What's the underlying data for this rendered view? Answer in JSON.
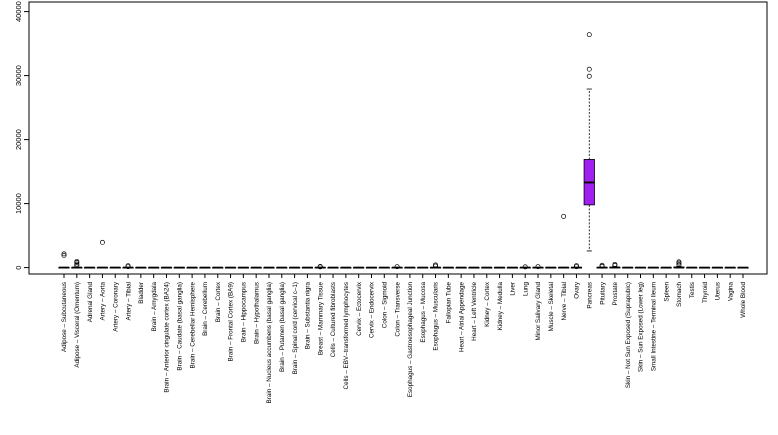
{
  "chart_data": {
    "type": "boxplot",
    "title": "",
    "xlabel": "",
    "ylabel": "",
    "ylim": [
      -1000,
      41500
    ],
    "yticks": [
      0,
      10000,
      20000,
      30000,
      40000
    ],
    "ytick_labels": [
      "0",
      "10000",
      "20000",
      "30000",
      "40000"
    ],
    "grid": false,
    "highlight_color": "#a020f0",
    "default_box_color": "#ffffff",
    "categories": [
      {
        "name": "Adipose – Subcutaneous",
        "q1": 0,
        "median": 5,
        "q3": 20,
        "wlo": 0,
        "whi": 45,
        "outliers": [
          1900,
          2150
        ]
      },
      {
        "name": "Adipose – Visceral (Omentum)",
        "q1": 0,
        "median": 5,
        "q3": 25,
        "wlo": 0,
        "whi": 55,
        "outliers": [
          350,
          550,
          800,
          950
        ]
      },
      {
        "name": "Adrenal Gland",
        "q1": 0,
        "median": 3,
        "q3": 10,
        "wlo": 0,
        "whi": 20,
        "outliers": []
      },
      {
        "name": "Artery – Aorta",
        "q1": 0,
        "median": 5,
        "q3": 20,
        "wlo": 0,
        "whi": 45,
        "outliers": [
          3950
        ]
      },
      {
        "name": "Artery – Coronary",
        "q1": 0,
        "median": 5,
        "q3": 20,
        "wlo": 0,
        "whi": 45,
        "outliers": []
      },
      {
        "name": "Artery – Tibial",
        "q1": 0,
        "median": 5,
        "q3": 20,
        "wlo": 0,
        "whi": 45,
        "outliers": [
          150,
          300
        ]
      },
      {
        "name": "Bladder",
        "q1": 0,
        "median": 3,
        "q3": 10,
        "wlo": 0,
        "whi": 20,
        "outliers": []
      },
      {
        "name": "Brain – Amygdala",
        "q1": 0,
        "median": 3,
        "q3": 10,
        "wlo": 0,
        "whi": 20,
        "outliers": []
      },
      {
        "name": "Brain – Anterior cingulate cortex (BA24)",
        "q1": 0,
        "median": 3,
        "q3": 10,
        "wlo": 0,
        "whi": 20,
        "outliers": []
      },
      {
        "name": "Brain – Caudate (basal ganglia)",
        "q1": 0,
        "median": 3,
        "q3": 10,
        "wlo": 0,
        "whi": 20,
        "outliers": []
      },
      {
        "name": "Brain – Cerebellar Hemisphere",
        "q1": 0,
        "median": 3,
        "q3": 10,
        "wlo": 0,
        "whi": 20,
        "outliers": []
      },
      {
        "name": "Brain – Cerebellum",
        "q1": 0,
        "median": 3,
        "q3": 10,
        "wlo": 0,
        "whi": 20,
        "outliers": []
      },
      {
        "name": "Brain – Cortex",
        "q1": 0,
        "median": 3,
        "q3": 10,
        "wlo": 0,
        "whi": 20,
        "outliers": []
      },
      {
        "name": "Brain – Frontal Cortex (BA9)",
        "q1": 0,
        "median": 3,
        "q3": 10,
        "wlo": 0,
        "whi": 20,
        "outliers": []
      },
      {
        "name": "Brain – Hippocampus",
        "q1": 0,
        "median": 3,
        "q3": 10,
        "wlo": 0,
        "whi": 20,
        "outliers": []
      },
      {
        "name": "Brain – Hypothalamus",
        "q1": 0,
        "median": 3,
        "q3": 10,
        "wlo": 0,
        "whi": 20,
        "outliers": []
      },
      {
        "name": "Brain – Nucleus accumbens (basal ganglia)",
        "q1": 0,
        "median": 3,
        "q3": 10,
        "wlo": 0,
        "whi": 20,
        "outliers": []
      },
      {
        "name": "Brain – Putamen (basal ganglia)",
        "q1": 0,
        "median": 3,
        "q3": 10,
        "wlo": 0,
        "whi": 20,
        "outliers": []
      },
      {
        "name": "Brain – Spinal cord (cervical c–1)",
        "q1": 0,
        "median": 3,
        "q3": 10,
        "wlo": 0,
        "whi": 20,
        "outliers": []
      },
      {
        "name": "Brain – Substantia nigra",
        "q1": 0,
        "median": 3,
        "q3": 10,
        "wlo": 0,
        "whi": 20,
        "outliers": []
      },
      {
        "name": "Breast – Mammary Tissue",
        "q1": 0,
        "median": 5,
        "q3": 25,
        "wlo": 0,
        "whi": 55,
        "outliers": [
          120,
          180
        ]
      },
      {
        "name": "Cells – Cultured fibroblasts",
        "q1": 0,
        "median": 3,
        "q3": 10,
        "wlo": 0,
        "whi": 20,
        "outliers": []
      },
      {
        "name": "Cells – EBV–transformed lymphocytes",
        "q1": 0,
        "median": 3,
        "q3": 10,
        "wlo": 0,
        "whi": 20,
        "outliers": []
      },
      {
        "name": "Cervix – Ectocervix",
        "q1": 0,
        "median": 3,
        "q3": 10,
        "wlo": 0,
        "whi": 20,
        "outliers": []
      },
      {
        "name": "Cervix – Endocervix",
        "q1": 0,
        "median": 3,
        "q3": 10,
        "wlo": 0,
        "whi": 20,
        "outliers": []
      },
      {
        "name": "Colon – Sigmoid",
        "q1": 0,
        "median": 3,
        "q3": 15,
        "wlo": 0,
        "whi": 30,
        "outliers": []
      },
      {
        "name": "Colon – Transverse",
        "q1": 0,
        "median": 5,
        "q3": 20,
        "wlo": 0,
        "whi": 45,
        "outliers": [
          150
        ]
      },
      {
        "name": "Esophagus – Gastroesophageal Junction",
        "q1": 0,
        "median": 3,
        "q3": 15,
        "wlo": 0,
        "whi": 30,
        "outliers": []
      },
      {
        "name": "Esophagus – Mucosa",
        "q1": 0,
        "median": 3,
        "q3": 15,
        "wlo": 0,
        "whi": 30,
        "outliers": []
      },
      {
        "name": "Esophagus – Muscularis",
        "q1": 0,
        "median": 3,
        "q3": 15,
        "wlo": 0,
        "whi": 30,
        "outliers": [
          250,
          420
        ]
      },
      {
        "name": "Fallopian Tube",
        "q1": 0,
        "median": 3,
        "q3": 10,
        "wlo": 0,
        "whi": 20,
        "outliers": []
      },
      {
        "name": "Heart – Atrial Appendage",
        "q1": 0,
        "median": 3,
        "q3": 10,
        "wlo": 0,
        "whi": 20,
        "outliers": []
      },
      {
        "name": "Heart – Left Ventricle",
        "q1": 0,
        "median": 3,
        "q3": 10,
        "wlo": 0,
        "whi": 20,
        "outliers": []
      },
      {
        "name": "Kidney – Cortex",
        "q1": 0,
        "median": 3,
        "q3": 10,
        "wlo": 0,
        "whi": 20,
        "outliers": []
      },
      {
        "name": "Kidney – Medulla",
        "q1": 0,
        "median": 3,
        "q3": 10,
        "wlo": 0,
        "whi": 20,
        "outliers": []
      },
      {
        "name": "Liver",
        "q1": 0,
        "median": 3,
        "q3": 10,
        "wlo": 0,
        "whi": 20,
        "outliers": []
      },
      {
        "name": "Lung",
        "q1": 0,
        "median": 5,
        "q3": 20,
        "wlo": 0,
        "whi": 45,
        "outliers": [
          120
        ]
      },
      {
        "name": "Minor Salivary Gland",
        "q1": 0,
        "median": 3,
        "q3": 15,
        "wlo": 0,
        "whi": 30,
        "outliers": [
          150
        ]
      },
      {
        "name": "Muscle – Skeletal",
        "q1": 0,
        "median": 3,
        "q3": 10,
        "wlo": 0,
        "whi": 20,
        "outliers": []
      },
      {
        "name": "Nerve – Tibial",
        "q1": 0,
        "median": 5,
        "q3": 20,
        "wlo": 0,
        "whi": 45,
        "outliers": [
          8000
        ]
      },
      {
        "name": "Ovary",
        "q1": 0,
        "median": 5,
        "q3": 25,
        "wlo": 0,
        "whi": 55,
        "outliers": [
          150,
          300
        ]
      },
      {
        "name": "Pancreas",
        "q1": 9800,
        "median": 13300,
        "q3": 16900,
        "wlo": 2600,
        "whi": 27900,
        "outliers": [
          29900,
          31000,
          36400
        ]
      },
      {
        "name": "Pituitary",
        "q1": 0,
        "median": 5,
        "q3": 25,
        "wlo": 0,
        "whi": 55,
        "outliers": [
          200,
          350
        ]
      },
      {
        "name": "Prostate",
        "q1": 0,
        "median": 10,
        "q3": 60,
        "wlo": 0,
        "whi": 140,
        "outliers": [
          350,
          500
        ]
      },
      {
        "name": "Skin – Not Sun Exposed (Suprapubic)",
        "q1": 0,
        "median": 3,
        "q3": 15,
        "wlo": 0,
        "whi": 30,
        "outliers": []
      },
      {
        "name": "Skin – Sun Exposed (Lower leg)",
        "q1": 0,
        "median": 3,
        "q3": 15,
        "wlo": 0,
        "whi": 30,
        "outliers": []
      },
      {
        "name": "Small Intestine – Terminal Ileum",
        "q1": 0,
        "median": 3,
        "q3": 15,
        "wlo": 0,
        "whi": 30,
        "outliers": []
      },
      {
        "name": "Spleen",
        "q1": 0,
        "median": 3,
        "q3": 10,
        "wlo": 0,
        "whi": 20,
        "outliers": []
      },
      {
        "name": "Stomach",
        "q1": 0,
        "median": 10,
        "q3": 80,
        "wlo": 0,
        "whi": 180,
        "outliers": [
          450,
          700,
          900
        ]
      },
      {
        "name": "Testis",
        "q1": 0,
        "median": 3,
        "q3": 15,
        "wlo": 0,
        "whi": 30,
        "outliers": []
      },
      {
        "name": "Thyroid",
        "q1": 0,
        "median": 3,
        "q3": 10,
        "wlo": 0,
        "whi": 20,
        "outliers": []
      },
      {
        "name": "Uterus",
        "q1": 0,
        "median": 3,
        "q3": 10,
        "wlo": 0,
        "whi": 20,
        "outliers": []
      },
      {
        "name": "Vagina",
        "q1": 0,
        "median": 3,
        "q3": 10,
        "wlo": 0,
        "whi": 20,
        "outliers": []
      },
      {
        "name": "Whole Blood",
        "q1": 0,
        "median": 3,
        "q3": 10,
        "wlo": 0,
        "whi": 20,
        "outliers": []
      }
    ],
    "highlighted_category": "Pancreas"
  }
}
